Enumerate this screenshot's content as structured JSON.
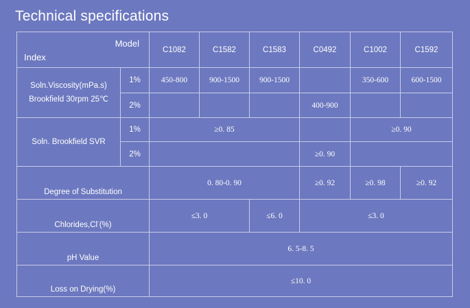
{
  "title": "Technical specifications",
  "header": {
    "model_label": "Model",
    "index_label": "Index",
    "models": [
      "C1082",
      "C1582",
      "C1583",
      "C0492",
      "C1002",
      "C1592"
    ]
  },
  "rows": {
    "soln_viscosity": {
      "label_line1": "Soln.Viscosity(mPa.s)",
      "label_line2": "Brookfield 30rpm 25℃",
      "conc_1": "1%",
      "conc_2": "2%",
      "c1082_1": "450-800",
      "c1582_1": "900-1500",
      "c1583_1": "900-1500",
      "c1002_1": "350-600",
      "c1592_1": "600-1500",
      "c0492_2": "400-900"
    },
    "brookfield_svr": {
      "label": "Soln. Brookfield SVR",
      "conc_1": "1%",
      "conc_2": "2%",
      "group1_1": "≥0. 85",
      "group2_1": "≥0. 90",
      "c0492_2": "≥0. 90"
    },
    "degree_of_substitution": {
      "label": "Degree of Substitution",
      "group": "0. 80-0. 90",
      "c0492": "≥0. 92",
      "c1002": "≥0. 98",
      "c1592": "≥0. 92"
    },
    "chlorides": {
      "label_prefix": "Chlorides,Cl",
      "label_sup": "-",
      "label_suffix": "(%)",
      "group1": "≤3. 0",
      "c1583": "≤6. 0",
      "group2": "≤3. 0"
    },
    "ph": {
      "label": "pH Value",
      "value": "6. 5-8. 5"
    },
    "loss_on_drying": {
      "label": "Loss on Drying(%)",
      "value": "≤10. 0"
    }
  }
}
